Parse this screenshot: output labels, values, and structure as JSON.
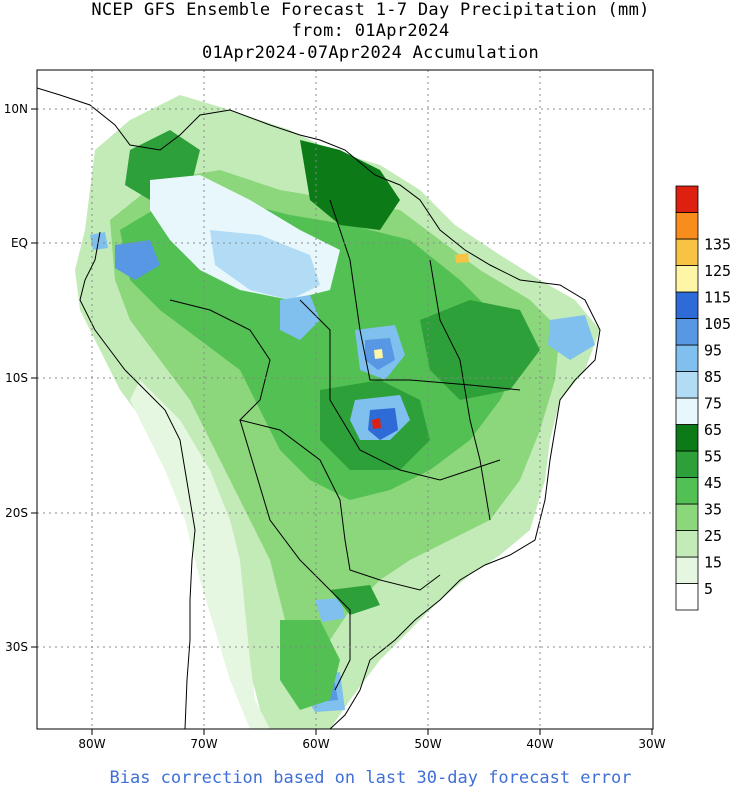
{
  "title": {
    "line1": "NCEP GFS Ensemble Forecast 1-7 Day Precipitation (mm)",
    "line2": "from: 01Apr2024",
    "line3": "01Apr2024-07Apr2024 Accumulation"
  },
  "map": {
    "lon_labels": [
      "80W",
      "70W",
      "60W",
      "50W",
      "40W",
      "30W"
    ],
    "lat_labels": [
      "10N",
      "EQ",
      "10S",
      "20S",
      "30S"
    ],
    "grid": true
  },
  "legend": {
    "colors": [
      "#ffffff",
      "#e6f7e1",
      "#c2ebb7",
      "#8cd67c",
      "#52c052",
      "#2ea039",
      "#0b7a17",
      "#e8f7fb",
      "#b2dcf6",
      "#80c0ef",
      "#5797e3",
      "#2e6bd6",
      "#fff5a6",
      "#f8c245",
      "#f88c1c",
      "#dd2010"
    ],
    "labels": [
      "5",
      "15",
      "25",
      "35",
      "45",
      "55",
      "65",
      "75",
      "85",
      "95",
      "105",
      "115",
      "125",
      "135"
    ]
  },
  "footer": "Bias correction based on last 30-day forecast error"
}
